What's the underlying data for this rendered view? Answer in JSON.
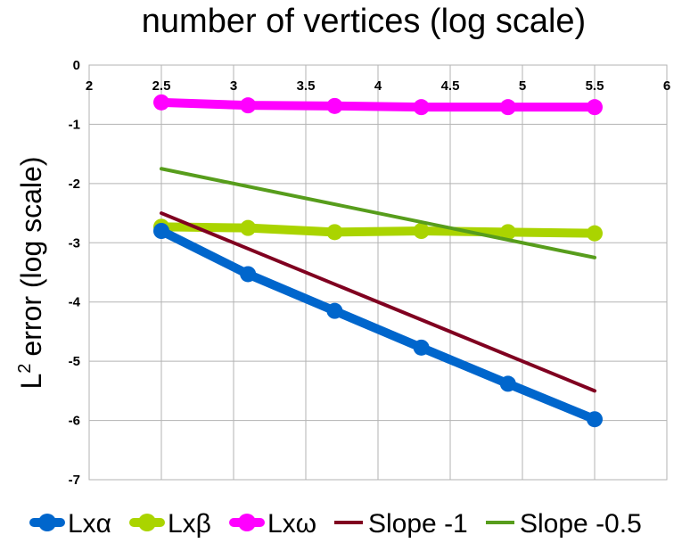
{
  "chart_data": {
    "type": "line",
    "title": "number of vertices (log scale)",
    "ylabel": "error (log scale)",
    "ylabel_prefix": "L",
    "ylabel_superscript": "2",
    "xlim": [
      2,
      6
    ],
    "ylim": [
      -7,
      0
    ],
    "x_ticks": [
      "2",
      "2.5",
      "3",
      "3.5",
      "4",
      "4.5",
      "5",
      "5.5",
      "6"
    ],
    "y_ticks": [
      "0",
      "-1",
      "-2",
      "-3",
      "-4",
      "-5",
      "-6",
      "-7"
    ],
    "grid": true,
    "legend_position": "bottom",
    "series": [
      {
        "name": "Lxα",
        "color": "#0066cc",
        "markers": true,
        "x": [
          2.5,
          3.1,
          3.7,
          4.3,
          4.9,
          5.5
        ],
        "y": [
          -2.8,
          -3.53,
          -4.15,
          -4.77,
          -5.38,
          -5.98
        ]
      },
      {
        "name": "Lxβ",
        "color": "#aad400",
        "markers": true,
        "x": [
          2.5,
          3.1,
          3.7,
          4.3,
          4.9,
          5.5
        ],
        "y": [
          -2.73,
          -2.75,
          -2.82,
          -2.8,
          -2.82,
          -2.84
        ]
      },
      {
        "name": "Lxω",
        "color": "#ff00ff",
        "markers": true,
        "x": [
          2.5,
          3.1,
          3.7,
          4.3,
          4.9,
          5.5
        ],
        "y": [
          -0.63,
          -0.68,
          -0.69,
          -0.71,
          -0.71,
          -0.71
        ]
      },
      {
        "name": "Slope -1",
        "color": "#800020",
        "markers": false,
        "x": [
          2.5,
          5.5
        ],
        "y": [
          -2.5,
          -5.5
        ]
      },
      {
        "name": "Slope -0.5",
        "color": "#579d1c",
        "markers": false,
        "x": [
          2.5,
          5.5
        ],
        "y": [
          -1.75,
          -3.25
        ]
      }
    ]
  }
}
